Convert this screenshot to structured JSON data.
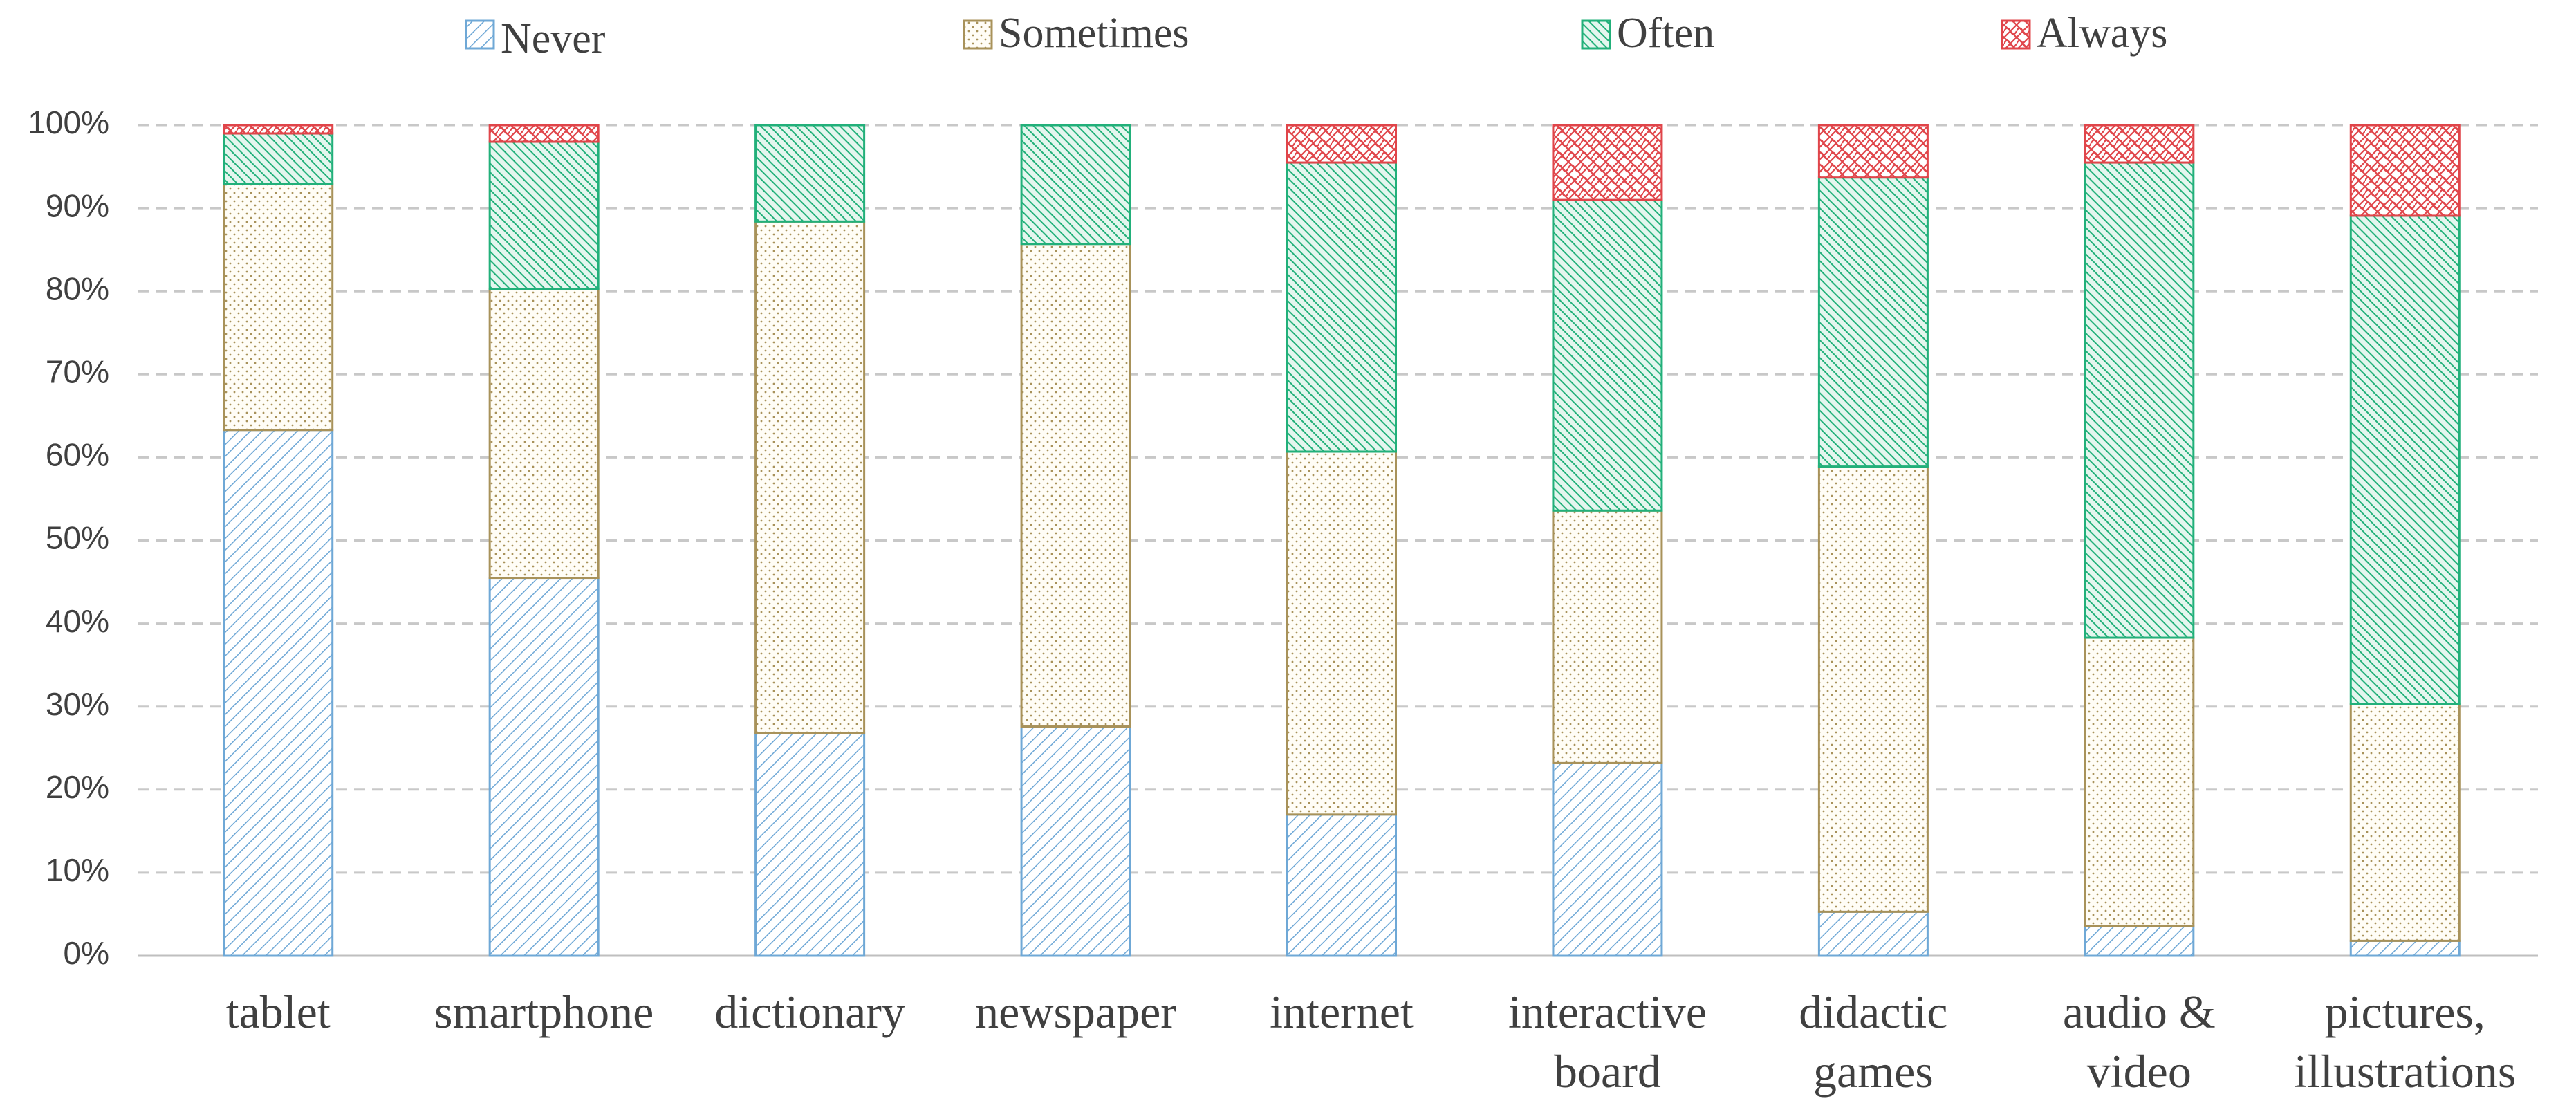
{
  "chart_data": {
    "type": "stacked_bar",
    "categories": [
      "tablet",
      "smartphone",
      "dictionary",
      "newspaper",
      "internet",
      "interactive\nboard",
      "didactic\ngames",
      "audio &\nvideo",
      "pictures,\nillustrations"
    ],
    "series": [
      {
        "name": "Never",
        "color": "#6fa8d6",
        "values": [
          63.3,
          45.5,
          26.8,
          27.6,
          17.0,
          23.2,
          5.3,
          3.6,
          1.8
        ]
      },
      {
        "name": "Sometimes",
        "color": "#a8925a",
        "values": [
          29.6,
          34.8,
          61.6,
          58.1,
          43.7,
          30.4,
          53.6,
          34.7,
          28.5
        ]
      },
      {
        "name": "Often",
        "color": "#22b07a",
        "values": [
          6.1,
          17.7,
          11.6,
          14.3,
          34.8,
          37.4,
          34.8,
          57.2,
          58.8
        ]
      },
      {
        "name": "Always",
        "color": "#e0454a",
        "values": [
          1.0,
          2.0,
          0,
          0,
          4.5,
          9.0,
          6.3,
          4.5,
          10.9
        ]
      }
    ],
    "ylim": [
      0,
      100
    ],
    "yticks": [
      {
        "value": 0,
        "label": "0%"
      },
      {
        "value": 10,
        "label": "10%"
      },
      {
        "value": 20,
        "label": "20%"
      },
      {
        "value": 30,
        "label": "30%"
      },
      {
        "value": 40,
        "label": "40%"
      },
      {
        "value": 50,
        "label": "50%"
      },
      {
        "value": 60,
        "label": "60%"
      },
      {
        "value": 70,
        "label": "70%"
      },
      {
        "value": 80,
        "label": "80%"
      },
      {
        "value": 90,
        "label": "90%"
      },
      {
        "value": 100,
        "label": "100%"
      }
    ],
    "grid": true
  }
}
